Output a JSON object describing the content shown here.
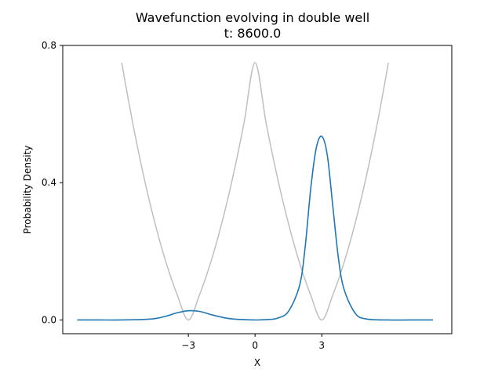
{
  "chart_data": {
    "type": "line",
    "title": "Wavefunction evolving in double well",
    "subtitle": "t: 8600.0",
    "xlabel": "X",
    "ylabel": "Probability Density",
    "xlim": [
      -8.65,
      8.85
    ],
    "ylim": [
      -0.04,
      0.8
    ],
    "x_ticks": [
      -3,
      0,
      3
    ],
    "x_tick_labels": [
      "−3",
      "0",
      "3"
    ],
    "y_ticks": [
      0.0,
      0.4,
      0.8
    ],
    "y_tick_labels": [
      "0.0",
      "0.4",
      "0.8"
    ],
    "grid": false,
    "series": [
      {
        "color": "#1f77b4",
        "x": [
          -8.0,
          -7.0,
          -6.0,
          -5.0,
          -4.5,
          -4.0,
          -3.5,
          -3.0,
          -2.5,
          -2.0,
          -1.5,
          -1.0,
          0.0,
          0.5,
          1.0,
          1.5,
          2.0,
          2.25,
          2.5,
          2.75,
          3.0,
          3.25,
          3.5,
          3.75,
          4.0,
          4.5,
          5.0,
          6.0,
          7.0,
          8.0
        ],
        "values": [
          0.0,
          0.0,
          0.0,
          0.0015,
          0.004,
          0.011,
          0.021,
          0.027,
          0.025,
          0.016,
          0.008,
          0.003,
          0.0,
          0.001,
          0.005,
          0.025,
          0.1,
          0.21,
          0.38,
          0.5,
          0.535,
          0.48,
          0.33,
          0.18,
          0.09,
          0.02,
          0.003,
          0.0,
          0.0,
          0.0
        ]
      },
      {
        "color": "#bfbfbf",
        "x": [
          -6.0,
          -5.5,
          -5.0,
          -4.5,
          -4.0,
          -3.5,
          -3.0,
          -2.5,
          -2.0,
          -1.5,
          -1.0,
          -0.5,
          0.0,
          0.5,
          1.0,
          1.5,
          2.0,
          2.5,
          3.0,
          3.5,
          4.0,
          4.5,
          5.0,
          5.5,
          6.0
        ],
        "values": [
          0.75,
          0.5729,
          0.4167,
          0.2813,
          0.1667,
          0.0729,
          0.0,
          0.0729,
          0.1667,
          0.2813,
          0.4167,
          0.5729,
          0.75,
          0.5729,
          0.4167,
          0.2813,
          0.1667,
          0.0729,
          0.0,
          0.0729,
          0.1667,
          0.2813,
          0.4167,
          0.5729,
          0.75
        ]
      }
    ]
  }
}
